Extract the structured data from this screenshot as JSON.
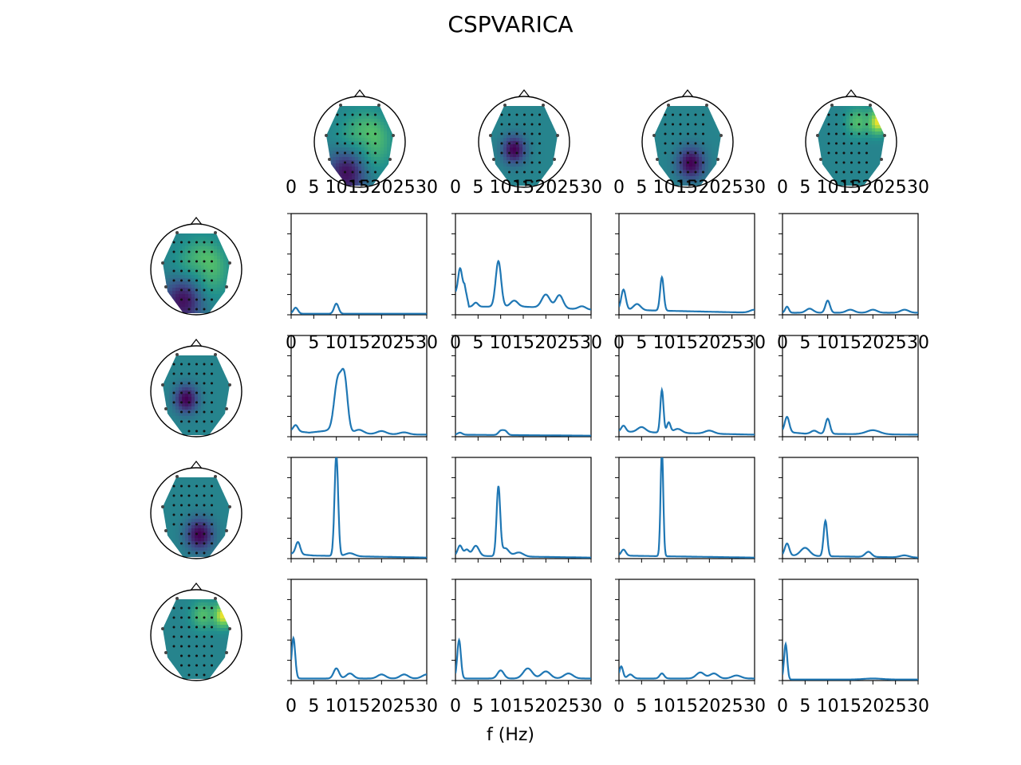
{
  "title": "CSPVARICA",
  "xlabel": "f (Hz)",
  "colors": {
    "line": "#1f77b4",
    "colormap": [
      "#440154",
      "#3b528b",
      "#21908d",
      "#5dc863",
      "#fde725"
    ]
  },
  "chart_data": {
    "type": "line",
    "title": "CSPVARICA",
    "xlabel": "f (Hz)",
    "ylabel": "",
    "xlim": [
      0,
      30
    ],
    "x_ticks": [
      0,
      5,
      10,
      15,
      20,
      25,
      30
    ],
    "x_tick_labels": [
      "0",
      "5",
      "10",
      "15",
      "20",
      "25",
      "30"
    ],
    "ylim": [
      0,
      1
    ],
    "grid": false,
    "legend": "none",
    "rows": 4,
    "cols": 4,
    "topomaps": {
      "columns": [
        {
          "hotspots": [
            {
              "x": 0.62,
              "y": 0.42,
              "v": 0.85,
              "r": 0.18
            },
            {
              "x": 0.5,
              "y": 0.55,
              "v": 0.65,
              "r": 0.25
            },
            {
              "x": 0.3,
              "y": 0.85,
              "v": 0.05,
              "r": 0.22
            }
          ]
        },
        {
          "hotspots": [
            {
              "x": 0.35,
              "y": 0.55,
              "v": 0.0,
              "r": 0.12
            }
          ]
        },
        {
          "hotspots": [
            {
              "x": 0.55,
              "y": 0.72,
              "v": 0.0,
              "r": 0.14
            }
          ]
        },
        {
          "hotspots": [
            {
              "x": 0.9,
              "y": 0.2,
              "v": 1.0,
              "r": 0.1
            },
            {
              "x": 0.6,
              "y": 0.2,
              "v": 0.7,
              "r": 0.12
            }
          ]
        }
      ],
      "rows": [
        {
          "hotspots": [
            {
              "x": 0.62,
              "y": 0.42,
              "v": 0.85,
              "r": 0.18
            },
            {
              "x": 0.5,
              "y": 0.55,
              "v": 0.65,
              "r": 0.25
            },
            {
              "x": 0.3,
              "y": 0.85,
              "v": 0.05,
              "r": 0.22
            }
          ]
        },
        {
          "hotspots": [
            {
              "x": 0.35,
              "y": 0.55,
              "v": 0.0,
              "r": 0.12
            }
          ]
        },
        {
          "hotspots": [
            {
              "x": 0.55,
              "y": 0.72,
              "v": 0.0,
              "r": 0.14
            }
          ]
        },
        {
          "hotspots": [
            {
              "x": 0.9,
              "y": 0.2,
              "v": 1.0,
              "r": 0.1
            },
            {
              "x": 0.6,
              "y": 0.2,
              "v": 0.7,
              "r": 0.12
            }
          ]
        }
      ]
    },
    "panels": [
      [
        {
          "base": [
            [
              0,
              0.01
            ],
            [
              30,
              0.01
            ]
          ],
          "peaks": [
            [
              1,
              0.06,
              0.5
            ],
            [
              10,
              0.1,
              0.5
            ]
          ]
        },
        {
          "base": [
            [
              0,
              0.22
            ],
            [
              2,
              0.3
            ],
            [
              3,
              0.08
            ],
            [
              6,
              0.08
            ],
            [
              15,
              0.08
            ],
            [
              30,
              0.05
            ]
          ],
          "peaks": [
            [
              1,
              0.2,
              0.4
            ],
            [
              4.5,
              0.04,
              0.5
            ],
            [
              9.5,
              0.45,
              0.6
            ],
            [
              13,
              0.06,
              0.8
            ],
            [
              20,
              0.13,
              0.9
            ],
            [
              23,
              0.13,
              0.8
            ],
            [
              28,
              0.03,
              0.8
            ]
          ]
        },
        {
          "base": [
            [
              0,
              0.05
            ],
            [
              30,
              0.02
            ]
          ],
          "peaks": [
            [
              1,
              0.2,
              0.5
            ],
            [
              4,
              0.06,
              0.8
            ],
            [
              9.5,
              0.33,
              0.4
            ],
            [
              30,
              0.03,
              1
            ]
          ]
        },
        {
          "base": [
            [
              0,
              0.02
            ],
            [
              30,
              0.02
            ]
          ],
          "peaks": [
            [
              1,
              0.06,
              0.4
            ],
            [
              6,
              0.04,
              0.8
            ],
            [
              10,
              0.12,
              0.5
            ],
            [
              15,
              0.03,
              0.9
            ],
            [
              20,
              0.03,
              0.9
            ],
            [
              27,
              0.03,
              0.9
            ]
          ]
        }
      ],
      [
        {
          "base": [
            [
              0,
              0.06
            ],
            [
              4,
              0.04
            ],
            [
              8,
              0.06
            ],
            [
              12,
              0.03
            ],
            [
              30,
              0.02
            ]
          ],
          "peaks": [
            [
              1,
              0.06,
              0.5
            ],
            [
              10.3,
              0.5,
              0.8
            ],
            [
              11.8,
              0.52,
              0.7
            ],
            [
              15,
              0.04,
              1
            ],
            [
              20,
              0.03,
              1
            ],
            [
              25,
              0.02,
              1
            ]
          ]
        },
        {
          "base": [
            [
              0,
              0.02
            ],
            [
              30,
              0.01
            ]
          ],
          "peaks": [
            [
              1,
              0.02,
              0.5
            ],
            [
              10,
              0.04,
              0.5
            ],
            [
              11,
              0.04,
              0.5
            ]
          ]
        },
        {
          "base": [
            [
              0,
              0.05
            ],
            [
              30,
              0.02
            ]
          ],
          "peaks": [
            [
              1,
              0.06,
              0.5
            ],
            [
              5,
              0.05,
              0.9
            ],
            [
              9.5,
              0.42,
              0.35
            ],
            [
              11,
              0.1,
              0.4
            ],
            [
              13,
              0.04,
              0.9
            ],
            [
              20,
              0.03,
              1
            ]
          ]
        },
        {
          "base": [
            [
              0,
              0.05
            ],
            [
              5,
              0.03
            ],
            [
              30,
              0.02
            ]
          ],
          "peaks": [
            [
              1,
              0.15,
              0.5
            ],
            [
              7,
              0.03,
              0.7
            ],
            [
              10,
              0.15,
              0.5
            ],
            [
              20,
              0.04,
              1.5
            ]
          ]
        }
      ],
      [
        {
          "base": [
            [
              0,
              0.05
            ],
            [
              5,
              0.03
            ],
            [
              30,
              0.01
            ]
          ],
          "peaks": [
            [
              1.5,
              0.12,
              0.5
            ],
            [
              10,
              1.0,
              0.4
            ],
            [
              13,
              0.03,
              1
            ]
          ]
        },
        {
          "base": [
            [
              0,
              0.03
            ],
            [
              30,
              0.01
            ]
          ],
          "peaks": [
            [
              1,
              0.1,
              0.5
            ],
            [
              2.5,
              0.06,
              0.5
            ],
            [
              4.5,
              0.1,
              0.7
            ],
            [
              9.5,
              0.68,
              0.4
            ],
            [
              11,
              0.08,
              0.8
            ],
            [
              14,
              0.04,
              1
            ]
          ]
        },
        {
          "base": [
            [
              0,
              0.03
            ],
            [
              30,
              0.01
            ]
          ],
          "peaks": [
            [
              1,
              0.06,
              0.5
            ],
            [
              9.5,
              1.05,
              0.3
            ]
          ]
        },
        {
          "base": [
            [
              0,
              0.03
            ],
            [
              30,
              0.01
            ]
          ],
          "peaks": [
            [
              1,
              0.12,
              0.5
            ],
            [
              5,
              0.08,
              1
            ],
            [
              9.5,
              0.35,
              0.4
            ],
            [
              19,
              0.05,
              0.7
            ],
            [
              27,
              0.02,
              1
            ]
          ]
        }
      ],
      [
        {
          "base": [
            [
              0,
              0.02
            ],
            [
              30,
              0.02
            ]
          ],
          "peaks": [
            [
              0.5,
              0.4,
              0.4
            ],
            [
              10,
              0.1,
              0.6
            ],
            [
              13,
              0.05,
              0.8
            ],
            [
              20,
              0.04,
              0.9
            ],
            [
              25,
              0.04,
              0.9
            ],
            [
              30,
              0.04,
              1
            ]
          ]
        },
        {
          "base": [
            [
              0,
              0.02
            ],
            [
              30,
              0.02
            ]
          ],
          "peaks": [
            [
              0.8,
              0.38,
              0.4
            ],
            [
              10,
              0.08,
              0.7
            ],
            [
              16,
              0.1,
              1
            ],
            [
              20,
              0.07,
              1
            ],
            [
              25,
              0.05,
              1
            ]
          ]
        },
        {
          "base": [
            [
              0,
              0.02
            ],
            [
              30,
              0.02
            ]
          ],
          "peaks": [
            [
              0.5,
              0.12,
              0.4
            ],
            [
              2.5,
              0.04,
              0.6
            ],
            [
              9.5,
              0.05,
              0.5
            ],
            [
              18,
              0.06,
              0.9
            ],
            [
              21,
              0.05,
              0.9
            ],
            [
              26,
              0.03,
              1
            ]
          ]
        },
        {
          "base": [
            [
              0,
              0.01
            ],
            [
              30,
              0.01
            ]
          ],
          "peaks": [
            [
              0.7,
              0.35,
              0.35
            ],
            [
              20,
              0.01,
              2
            ]
          ]
        }
      ]
    ]
  }
}
